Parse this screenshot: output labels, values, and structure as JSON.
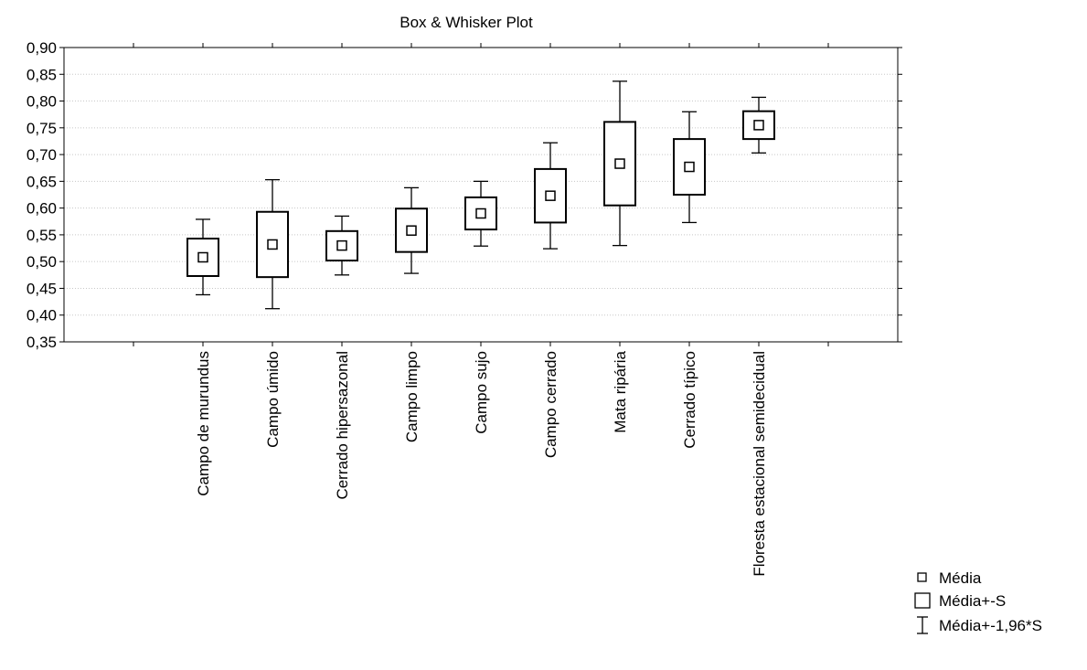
{
  "chart_data": {
    "type": "boxplot",
    "title": "Box & Whisker Plot",
    "xlabel": "",
    "ylabel": "",
    "ylim": [
      0.35,
      0.9
    ],
    "ytick_step": 0.05,
    "yticks": [
      "0,35",
      "0,40",
      "0,45",
      "0,50",
      "0,55",
      "0,60",
      "0,65",
      "0,70",
      "0,75",
      "0,80",
      "0,85",
      "0,90"
    ],
    "grid": "horizontal dotted",
    "legend_position": "bottom-right",
    "legend": {
      "mean": "Média",
      "box": "Média+-S",
      "whisker": "Média+-1,96*S"
    },
    "categories": [
      "Campo de murundus",
      "Campo úmido",
      "Cerrado hipersazonal",
      "Campo limpo",
      "Campo sujo",
      "Campo cerrado",
      "Mata ripária",
      "Cerrado típico",
      "Floresta estacional semidecidual"
    ],
    "series": [
      {
        "mean": 0.508,
        "box_low": 0.473,
        "box_high": 0.543,
        "whisker_low": 0.438,
        "whisker_high": 0.579
      },
      {
        "mean": 0.532,
        "box_low": 0.471,
        "box_high": 0.593,
        "whisker_low": 0.412,
        "whisker_high": 0.653
      },
      {
        "mean": 0.53,
        "box_low": 0.502,
        "box_high": 0.557,
        "whisker_low": 0.475,
        "whisker_high": 0.585
      },
      {
        "mean": 0.558,
        "box_low": 0.518,
        "box_high": 0.599,
        "whisker_low": 0.478,
        "whisker_high": 0.638
      },
      {
        "mean": 0.59,
        "box_low": 0.56,
        "box_high": 0.62,
        "whisker_low": 0.529,
        "whisker_high": 0.65
      },
      {
        "mean": 0.623,
        "box_low": 0.573,
        "box_high": 0.673,
        "whisker_low": 0.524,
        "whisker_high": 0.722
      },
      {
        "mean": 0.683,
        "box_low": 0.605,
        "box_high": 0.761,
        "whisker_low": 0.53,
        "whisker_high": 0.837
      },
      {
        "mean": 0.677,
        "box_low": 0.625,
        "box_high": 0.729,
        "whisker_low": 0.573,
        "whisker_high": 0.78
      },
      {
        "mean": 0.755,
        "box_low": 0.729,
        "box_high": 0.781,
        "whisker_low": 0.703,
        "whisker_high": 0.807
      }
    ]
  }
}
